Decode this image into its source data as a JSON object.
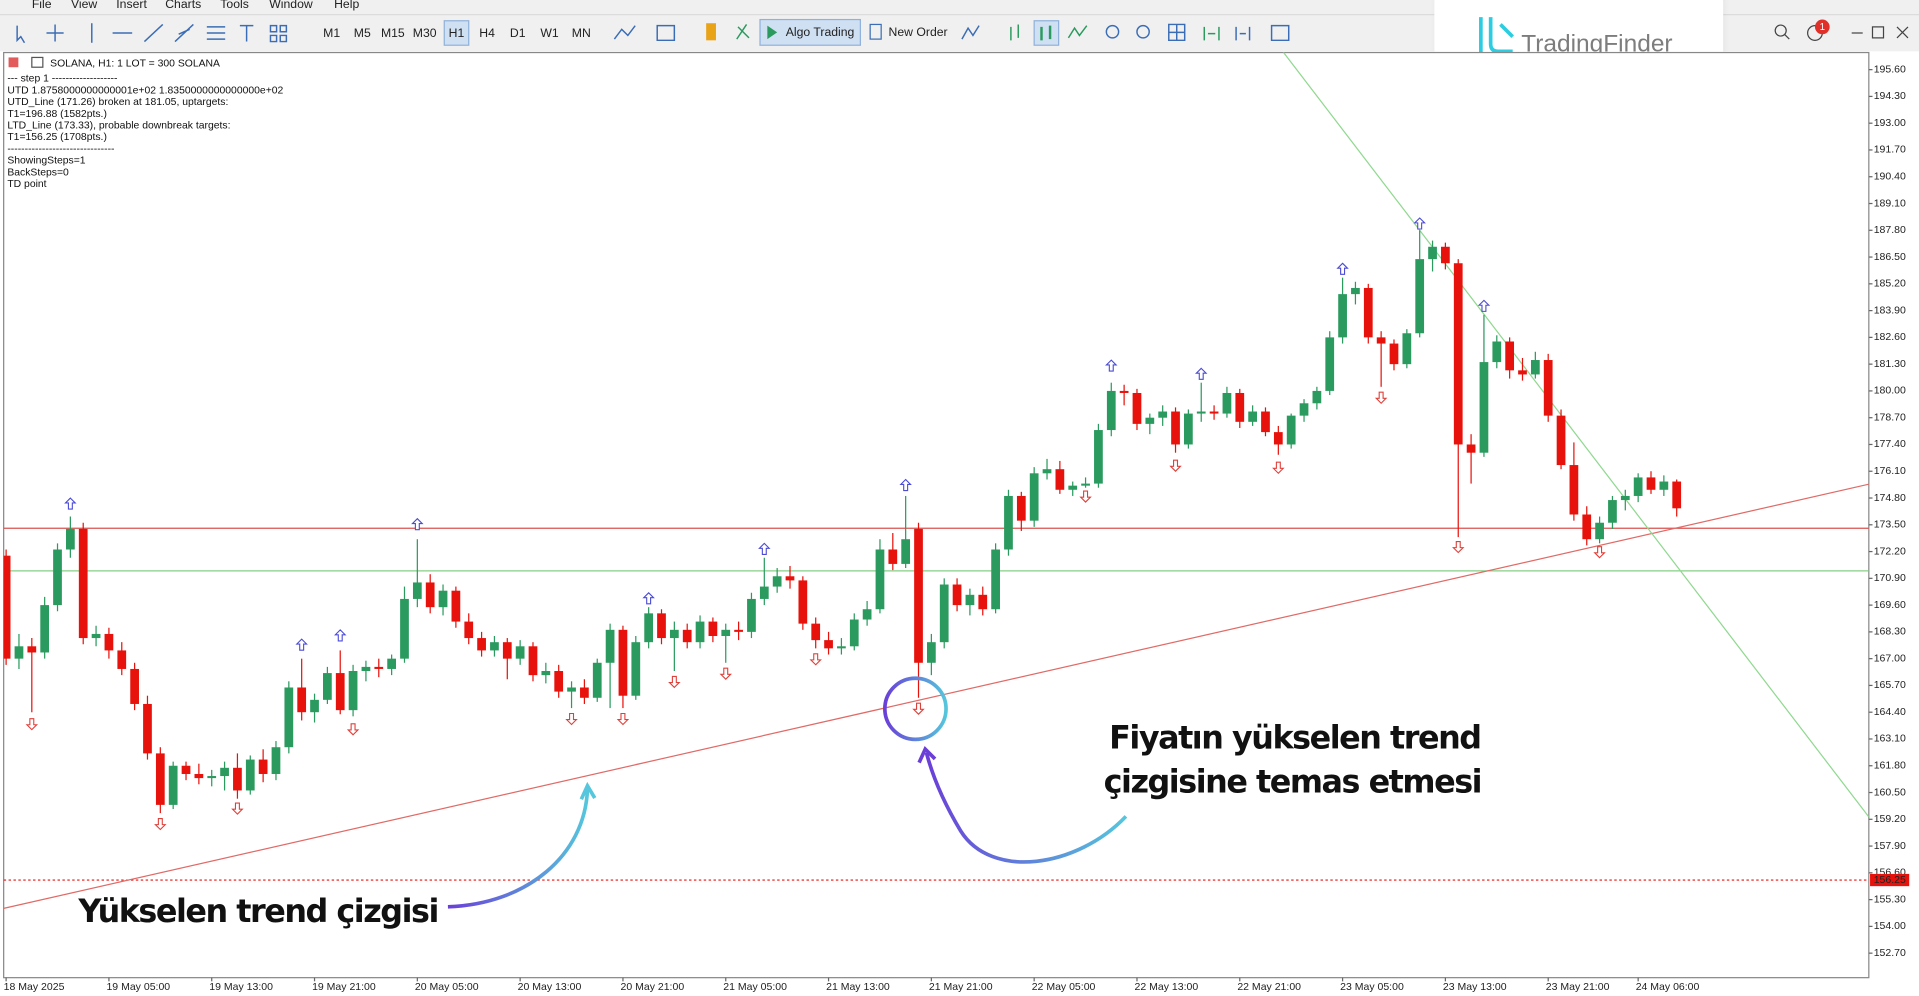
{
  "menu": [
    "File",
    "View",
    "Insert",
    "Charts",
    "Tools",
    "Window",
    "Help"
  ],
  "toolbar": {
    "timeframes": [
      "M1",
      "M5",
      "M15",
      "M30",
      "H1",
      "H4",
      "D1",
      "W1",
      "MN"
    ],
    "algo_trading": "Algo Trading",
    "new_order": "New Order"
  },
  "notification_count": 1,
  "logo": "TradingFinder",
  "chart_info": {
    "header": "SOLANA, H1:  1 LOT = 300 SOLANA",
    "lines": [
      "---   step 1   -------------------",
      "UTD 1.8758000000000001e+02  1.8350000000000000e+02",
      "UTD_Line (171.26) broken at 181.05, uptargets:",
      "T1=196.88 (1582pts.)",
      "LTD_Line (173.33), probable downbreak targets:",
      "T1=156.25 (1708pts.)",
      "-------------------------------",
      "ShowingSteps=1",
      "BackSteps=0",
      "TD point"
    ]
  },
  "chart_data": {
    "type": "candlestick",
    "up_color": "#2a9a5e",
    "down_color": "#e8120c",
    "ohlc": [
      [
        172.0,
        172.3,
        166.7,
        167.0
      ],
      [
        167.0,
        168.2,
        166.5,
        167.6
      ],
      [
        167.6,
        168.0,
        164.4,
        167.3
      ],
      [
        167.3,
        170.0,
        167.0,
        169.6
      ],
      [
        169.6,
        172.6,
        169.3,
        172.3
      ],
      [
        172.3,
        173.9,
        171.9,
        173.3
      ],
      [
        173.3,
        173.6,
        167.7,
        168.0
      ],
      [
        168.0,
        168.6,
        167.6,
        168.2
      ],
      [
        168.2,
        168.5,
        167.0,
        167.4
      ],
      [
        167.4,
        167.8,
        166.2,
        166.5
      ],
      [
        166.5,
        166.8,
        164.5,
        164.8
      ],
      [
        164.8,
        165.2,
        162.1,
        162.4
      ],
      [
        162.4,
        162.7,
        159.5,
        159.9
      ],
      [
        159.9,
        162.0,
        159.7,
        161.8
      ],
      [
        161.8,
        162.0,
        161.1,
        161.4
      ],
      [
        161.4,
        161.9,
        160.9,
        161.2
      ],
      [
        161.2,
        161.6,
        160.8,
        161.3
      ],
      [
        161.3,
        162.0,
        160.6,
        161.7
      ],
      [
        161.7,
        162.4,
        160.2,
        160.6
      ],
      [
        160.6,
        162.3,
        160.4,
        162.1
      ],
      [
        162.1,
        162.6,
        161.0,
        161.4
      ],
      [
        161.4,
        163.0,
        161.1,
        162.7
      ],
      [
        162.7,
        165.9,
        162.4,
        165.6
      ],
      [
        165.6,
        167.0,
        164.0,
        164.4
      ],
      [
        164.4,
        165.3,
        163.9,
        165.0
      ],
      [
        165.0,
        166.6,
        164.8,
        166.3
      ],
      [
        166.3,
        167.4,
        164.3,
        164.5
      ],
      [
        164.5,
        166.7,
        164.2,
        166.4
      ],
      [
        166.4,
        166.9,
        165.9,
        166.6
      ],
      [
        166.6,
        167.0,
        166.1,
        166.5
      ],
      [
        166.5,
        167.2,
        166.2,
        167.0
      ],
      [
        167.0,
        170.5,
        166.8,
        169.9
      ],
      [
        169.9,
        172.8,
        169.5,
        170.7
      ],
      [
        170.7,
        171.1,
        169.2,
        169.5
      ],
      [
        169.5,
        170.6,
        169.1,
        170.3
      ],
      [
        170.3,
        170.5,
        168.5,
        168.8
      ],
      [
        168.8,
        169.2,
        167.7,
        168.0
      ],
      [
        168.0,
        168.3,
        167.1,
        167.4
      ],
      [
        167.4,
        168.1,
        167.1,
        167.8
      ],
      [
        167.8,
        168.0,
        166.0,
        167.0
      ],
      [
        167.0,
        167.9,
        166.7,
        167.6
      ],
      [
        167.6,
        167.8,
        165.9,
        166.2
      ],
      [
        166.2,
        166.8,
        165.8,
        166.4
      ],
      [
        166.4,
        166.7,
        165.1,
        165.4
      ],
      [
        165.4,
        165.9,
        164.6,
        165.6
      ],
      [
        165.6,
        166.0,
        164.8,
        165.1
      ],
      [
        165.1,
        167.0,
        164.9,
        166.8
      ],
      [
        166.8,
        168.7,
        164.6,
        168.4
      ],
      [
        168.4,
        168.6,
        164.6,
        165.2
      ],
      [
        165.2,
        168.1,
        165.0,
        167.8
      ],
      [
        167.8,
        169.5,
        167.5,
        169.2
      ],
      [
        169.2,
        169.4,
        167.7,
        168.0
      ],
      [
        168.0,
        168.8,
        166.4,
        168.4
      ],
      [
        168.4,
        168.7,
        167.5,
        167.8
      ],
      [
        167.8,
        169.1,
        167.5,
        168.8
      ],
      [
        168.8,
        169.0,
        167.8,
        168.1
      ],
      [
        168.1,
        168.7,
        166.8,
        168.4
      ],
      [
        168.4,
        168.8,
        167.9,
        168.3
      ],
      [
        168.3,
        170.2,
        168.0,
        169.9
      ],
      [
        169.9,
        171.9,
        169.6,
        170.5
      ],
      [
        170.5,
        171.4,
        170.2,
        171.0
      ],
      [
        171.0,
        171.5,
        170.4,
        170.8
      ],
      [
        170.8,
        171.0,
        168.4,
        168.7
      ],
      [
        168.7,
        169.0,
        167.5,
        167.9
      ],
      [
        167.9,
        168.3,
        167.2,
        167.5
      ],
      [
        167.5,
        168.0,
        167.2,
        167.6
      ],
      [
        167.6,
        169.2,
        167.4,
        168.9
      ],
      [
        168.9,
        169.8,
        168.6,
        169.4
      ],
      [
        169.4,
        172.8,
        169.2,
        172.3
      ],
      [
        172.3,
        173.1,
        171.3,
        171.6
      ],
      [
        171.6,
        174.9,
        171.4,
        172.8
      ],
      [
        173.3,
        173.6,
        165.1,
        166.8
      ],
      [
        166.8,
        168.2,
        166.2,
        167.8
      ],
      [
        167.8,
        170.9,
        167.5,
        170.6
      ],
      [
        170.6,
        170.9,
        169.3,
        169.6
      ],
      [
        169.6,
        170.4,
        169.1,
        170.1
      ],
      [
        170.1,
        170.5,
        169.1,
        169.4
      ],
      [
        169.4,
        172.6,
        169.2,
        172.3
      ],
      [
        172.3,
        175.2,
        172.0,
        174.9
      ],
      [
        174.9,
        175.1,
        173.2,
        173.7
      ],
      [
        173.7,
        176.3,
        173.4,
        176.0
      ],
      [
        176.0,
        176.7,
        175.7,
        176.2
      ],
      [
        176.2,
        176.6,
        175.0,
        175.2
      ],
      [
        175.2,
        175.6,
        174.9,
        175.4
      ],
      [
        175.4,
        175.8,
        175.3,
        175.5
      ],
      [
        175.5,
        178.4,
        175.3,
        178.1
      ],
      [
        178.1,
        180.4,
        177.8,
        180.0
      ],
      [
        180.0,
        180.3,
        179.3,
        179.9
      ],
      [
        179.9,
        180.1,
        178.1,
        178.4
      ],
      [
        178.4,
        178.9,
        177.9,
        178.7
      ],
      [
        178.7,
        179.3,
        178.3,
        179.0
      ],
      [
        179.0,
        179.2,
        177.0,
        177.4
      ],
      [
        177.4,
        179.1,
        177.2,
        178.9
      ],
      [
        178.9,
        180.4,
        178.5,
        179.0
      ],
      [
        179.0,
        179.3,
        178.6,
        178.9
      ],
      [
        178.9,
        180.2,
        178.7,
        179.9
      ],
      [
        179.9,
        180.1,
        178.2,
        178.5
      ],
      [
        178.5,
        179.3,
        178.3,
        179.0
      ],
      [
        179.0,
        179.2,
        177.8,
        178.0
      ],
      [
        178.0,
        178.3,
        176.9,
        177.4
      ],
      [
        177.4,
        178.9,
        177.2,
        178.8
      ],
      [
        178.8,
        179.6,
        178.5,
        179.4
      ],
      [
        179.4,
        180.2,
        179.1,
        180.0
      ],
      [
        180.0,
        182.9,
        179.8,
        182.6
      ],
      [
        182.6,
        185.5,
        182.3,
        184.7
      ],
      [
        184.7,
        185.3,
        184.2,
        185.0
      ],
      [
        185.0,
        185.2,
        182.3,
        182.6
      ],
      [
        182.6,
        182.9,
        180.2,
        182.3
      ],
      [
        182.3,
        182.5,
        181.0,
        181.3
      ],
      [
        181.3,
        183.0,
        181.1,
        182.8
      ],
      [
        182.8,
        187.8,
        182.6,
        186.4
      ],
      [
        186.4,
        187.3,
        185.8,
        187.0
      ],
      [
        187.0,
        187.2,
        185.9,
        186.2
      ],
      [
        186.2,
        186.4,
        172.9,
        177.4
      ],
      [
        177.4,
        177.9,
        175.5,
        177.0
      ],
      [
        177.0,
        183.7,
        176.8,
        181.4
      ],
      [
        181.4,
        182.7,
        181.1,
        182.4
      ],
      [
        182.4,
        182.6,
        180.6,
        181.0
      ],
      [
        181.0,
        181.6,
        180.5,
        180.8
      ],
      [
        180.8,
        181.9,
        180.6,
        181.5
      ],
      [
        181.5,
        181.8,
        178.5,
        178.8
      ],
      [
        178.8,
        179.1,
        176.2,
        176.4
      ],
      [
        176.4,
        177.5,
        173.7,
        174.0
      ],
      [
        174.0,
        174.4,
        172.5,
        172.8
      ],
      [
        172.8,
        173.9,
        172.6,
        173.6
      ],
      [
        173.6,
        174.9,
        173.3,
        174.7
      ],
      [
        174.7,
        175.2,
        174.2,
        174.9
      ],
      [
        174.9,
        176.0,
        174.6,
        175.8
      ],
      [
        175.8,
        176.1,
        175.0,
        175.2
      ],
      [
        175.2,
        175.9,
        174.9,
        175.6
      ],
      [
        175.6,
        175.7,
        173.9,
        174.3
      ]
    ],
    "up_arrows": {
      "color": "#4b4bd6",
      "points": [
        {
          "x": 5,
          "value": 174.5
        },
        {
          "x": 23,
          "value": 167.65
        },
        {
          "x": 26,
          "value": 168.1
        },
        {
          "x": 32,
          "value": 173.5
        },
        {
          "x": 50,
          "value": 169.9
        },
        {
          "x": 59,
          "value": 172.3
        },
        {
          "x": 70,
          "value": 175.4
        },
        {
          "x": 86,
          "value": 181.2
        },
        {
          "x": 93,
          "value": 180.8
        },
        {
          "x": 104,
          "value": 185.9
        },
        {
          "x": 110,
          "value": 188.1
        },
        {
          "x": 115,
          "value": 184.1
        }
      ]
    },
    "down_arrows": {
      "color": "#e0403a",
      "points": [
        {
          "x": 2,
          "value": 163.85
        },
        {
          "x": 12,
          "value": 159.0
        },
        {
          "x": 18,
          "value": 159.75
        },
        {
          "x": 27,
          "value": 163.6
        },
        {
          "x": 44,
          "value": 164.1
        },
        {
          "x": 48,
          "value": 164.1
        },
        {
          "x": 52,
          "value": 165.9
        },
        {
          "x": 56,
          "value": 166.3
        },
        {
          "x": 63,
          "value": 167.0
        },
        {
          "x": 71,
          "value": 164.6
        },
        {
          "x": 84,
          "value": 174.9
        },
        {
          "x": 91,
          "value": 176.4
        },
        {
          "x": 99,
          "value": 176.3
        },
        {
          "x": 107,
          "value": 179.7
        },
        {
          "x": 113,
          "value": 172.45
        },
        {
          "x": 124,
          "value": 172.2
        }
      ]
    },
    "levels": [
      {
        "value": 173.33,
        "color": "#d9534f"
      },
      {
        "value": 171.26,
        "color": "#86cf86"
      },
      {
        "value": 156.25,
        "color": "#e8120c",
        "dashed": true
      }
    ],
    "trendlines": [
      {
        "color": "#e06a66",
        "x": [
          0,
          130
        ],
        "values": [
          154.9,
          173.35
        ]
      },
      {
        "color": "#8fd88f",
        "x": [
          110,
          130
        ],
        "values": [
          187.8,
          171.5
        ]
      }
    ],
    "xlim": [
      -0.19,
      144.95
    ],
    "ylim": [
      151.51,
      196.43
    ],
    "xticks": [
      {
        "value": 0,
        "label": "18 May 2025"
      },
      {
        "value": 8,
        "label": "19 May 05:00"
      },
      {
        "value": 16,
        "label": "19 May 13:00"
      },
      {
        "value": 24,
        "label": "19 May 21:00"
      },
      {
        "value": 32,
        "label": "20 May 05:00"
      },
      {
        "value": 40,
        "label": "20 May 13:00"
      },
      {
        "value": 48,
        "label": "20 May 21:00"
      },
      {
        "value": 56,
        "label": "21 May 05:00"
      },
      {
        "value": 64,
        "label": "21 May 13:00"
      },
      {
        "value": 72,
        "label": "21 May 21:00"
      },
      {
        "value": 80,
        "label": "22 May 05:00"
      },
      {
        "value": 88,
        "label": "22 May 13:00"
      },
      {
        "value": 96,
        "label": "22 May 21:00"
      },
      {
        "value": 104,
        "label": "23 May 05:00"
      },
      {
        "value": 112,
        "label": "23 May 13:00"
      },
      {
        "value": 120,
        "label": "23 May 21:00"
      },
      {
        "value": 127,
        "label": "24 May 06:00"
      }
    ],
    "yticks": [
      {
        "value": 195.6,
        "label": "195.60"
      },
      {
        "value": 194.3,
        "label": "194.30"
      },
      {
        "value": 193.0,
        "label": "193.00"
      },
      {
        "value": 191.7,
        "label": "191.70"
      },
      {
        "value": 190.4,
        "label": "190.40"
      },
      {
        "value": 189.1,
        "label": "189.10"
      },
      {
        "value": 187.8,
        "label": "187.80"
      },
      {
        "value": 186.5,
        "label": "186.50"
      },
      {
        "value": 185.2,
        "label": "185.20"
      },
      {
        "value": 183.9,
        "label": "183.90"
      },
      {
        "value": 182.6,
        "label": "182.60"
      },
      {
        "value": 181.3,
        "label": "181.30"
      },
      {
        "value": 180.0,
        "label": "180.00"
      },
      {
        "value": 178.7,
        "label": "178.70"
      },
      {
        "value": 177.4,
        "label": "177.40"
      },
      {
        "value": 176.1,
        "label": "176.10"
      },
      {
        "value": 174.8,
        "label": "174.80"
      },
      {
        "value": 173.5,
        "label": "173.50"
      },
      {
        "value": 172.2,
        "label": "172.20"
      },
      {
        "value": 170.9,
        "label": "170.90"
      },
      {
        "value": 169.6,
        "label": "169.60"
      },
      {
        "value": 168.3,
        "label": "168.30"
      },
      {
        "value": 167.0,
        "label": "167.00"
      },
      {
        "value": 165.7,
        "label": "165.70"
      },
      {
        "value": 164.4,
        "label": "164.40"
      },
      {
        "value": 163.1,
        "label": "163.10"
      },
      {
        "value": 161.8,
        "label": "161.80"
      },
      {
        "value": 160.5,
        "label": "160.50"
      },
      {
        "value": 159.2,
        "label": "159.20"
      },
      {
        "value": 157.9,
        "label": "157.90"
      },
      {
        "value": 156.6,
        "label": "156.60"
      },
      {
        "value": 155.3,
        "label": "155.30"
      },
      {
        "value": 154.0,
        "label": "154.00"
      },
      {
        "value": 152.7,
        "label": "152.70"
      }
    ]
  },
  "annotations": {
    "touch": [
      "Fiyatın yükselen trend",
      "çizgisine temas etmesi"
    ],
    "trendline": "Yükselen trend çizgisi"
  }
}
